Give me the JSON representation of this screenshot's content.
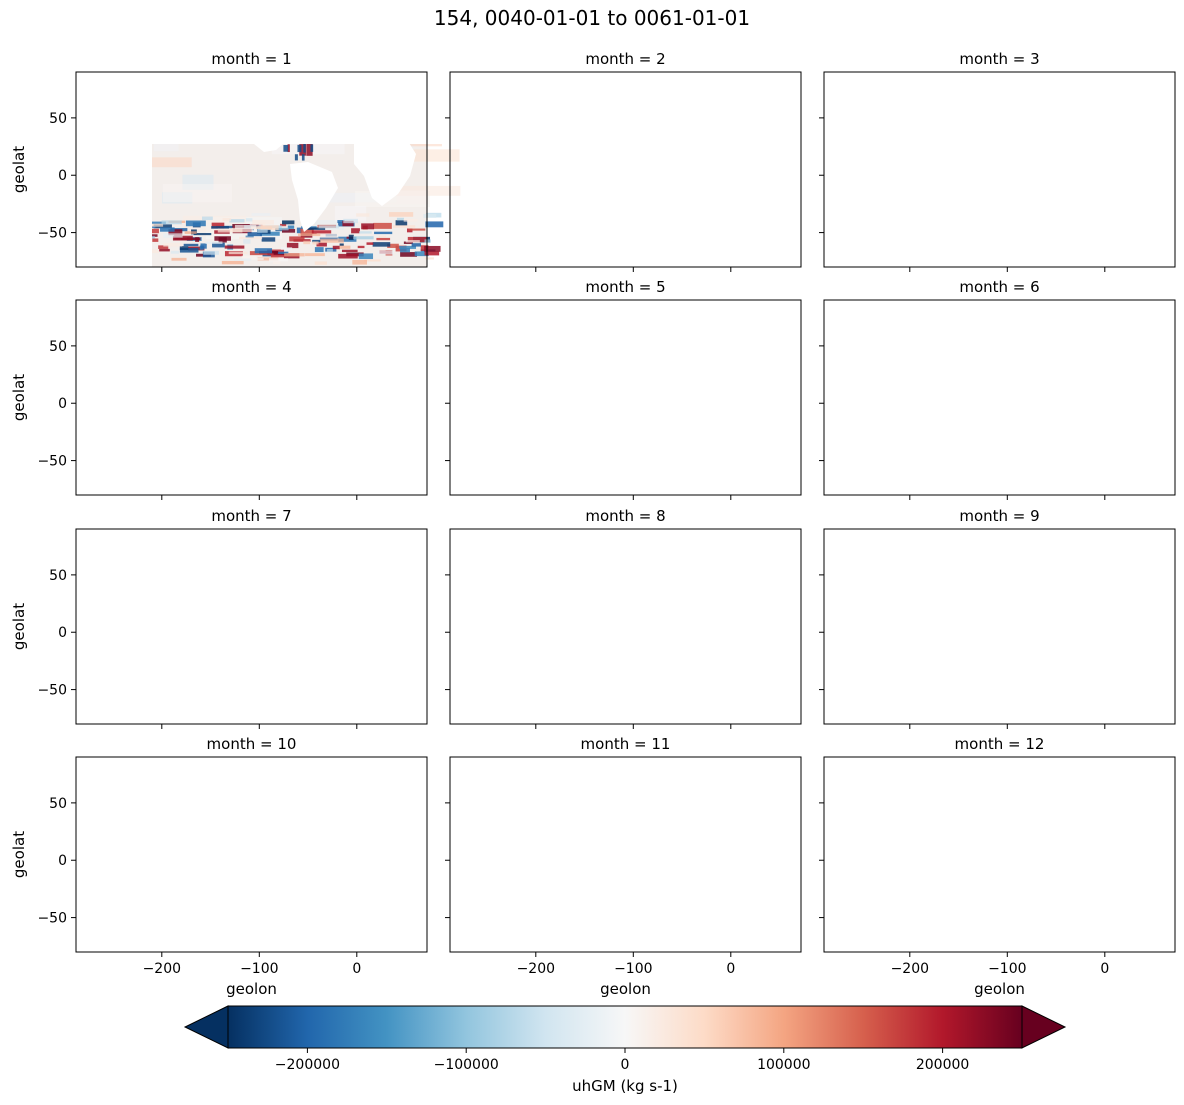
{
  "figure": {
    "title": "154, 0040-01-01 to 0061-01-01"
  },
  "chart_data": {
    "type": "heatmap",
    "title": "154, 0040-01-01 to 0061-01-01",
    "facet_by": "month",
    "xlabel": "geolon",
    "ylabel": "geolat",
    "xlim": [
      -288,
      72
    ],
    "ylim": [
      -80,
      90
    ],
    "xticks": [
      -200,
      -100,
      0
    ],
    "xtick_labels": [
      "−200",
      "−100",
      "0"
    ],
    "yticks": [
      -50,
      0,
      50
    ],
    "ytick_labels": [
      "−50",
      "0",
      "50"
    ],
    "panels": [
      {
        "title": "month = 1"
      },
      {
        "title": "month = 2"
      },
      {
        "title": "month = 3"
      },
      {
        "title": "month = 4"
      },
      {
        "title": "month = 5"
      },
      {
        "title": "month = 6"
      },
      {
        "title": "month = 7"
      },
      {
        "title": "month = 8"
      },
      {
        "title": "month = 9"
      },
      {
        "title": "month = 10"
      },
      {
        "title": "month = 11"
      },
      {
        "title": "month = 12"
      }
    ],
    "colorbar": {
      "label": "uhGM (kg s-1)",
      "vmin": -250000,
      "vmax": 250000,
      "extend": "both",
      "colormap": "RdBu_r",
      "ticks": [
        -200000,
        -100000,
        0,
        100000,
        200000
      ],
      "tick_labels": [
        "−200000",
        "−100000",
        "0",
        "100000",
        "200000"
      ],
      "colors": [
        "#053061",
        "#2166ac",
        "#4393c3",
        "#92c5de",
        "#d1e5f0",
        "#f7f7f7",
        "#fddbc7",
        "#f4a582",
        "#d6604d",
        "#b2182b",
        "#67001f"
      ]
    }
  }
}
